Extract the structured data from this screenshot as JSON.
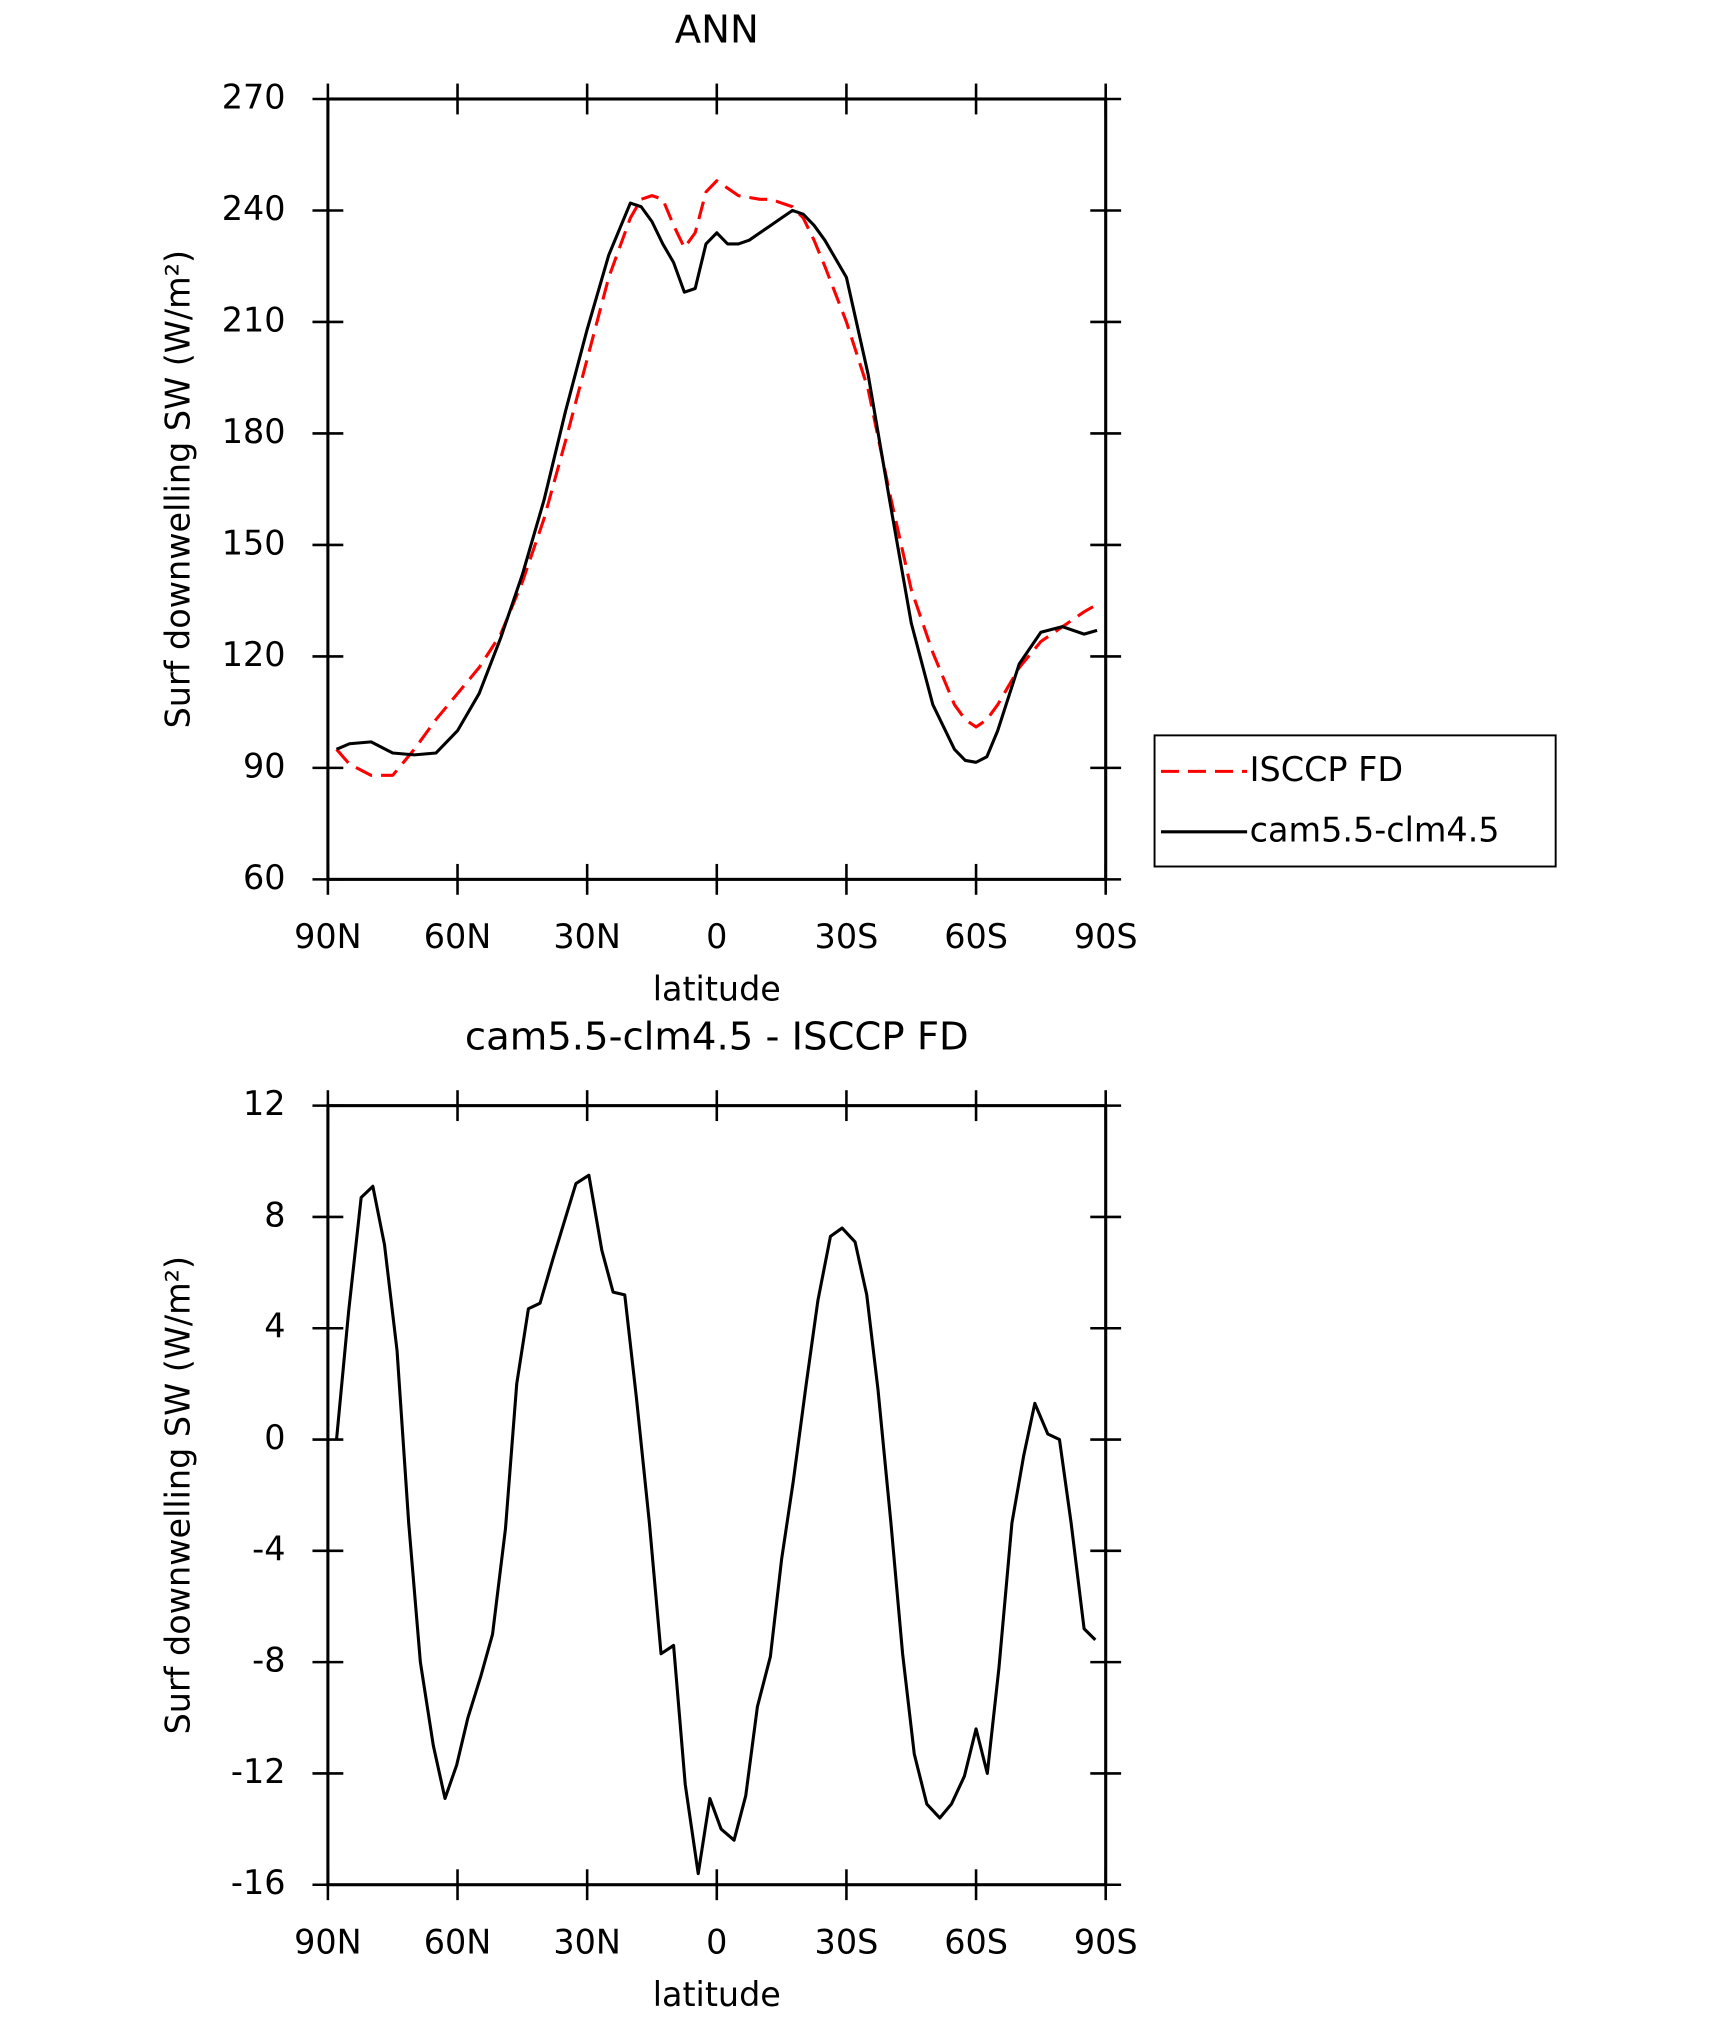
{
  "chart_data": [
    {
      "type": "line",
      "title": "ANN",
      "x_label": "latitude",
      "y_label": "Surf downwelling SW (W/m²)",
      "x": [
        88,
        85,
        80,
        75,
        70,
        65,
        60,
        55,
        50,
        45,
        40,
        35,
        30,
        25,
        20,
        17.5,
        15,
        12.5,
        10,
        7.5,
        5,
        2.5,
        0,
        -2.5,
        -5,
        -7.5,
        -10,
        -12.5,
        -15,
        -17.5,
        -20,
        -22.5,
        -25,
        -30,
        -35,
        -40,
        -45,
        -50,
        -55,
        -57.5,
        -60,
        -62.5,
        -65,
        -70,
        -75,
        -80,
        -85,
        -88
      ],
      "xlim": [
        90,
        -90
      ],
      "xticks": [
        {
          "value": 90,
          "label": "90N"
        },
        {
          "value": 60,
          "label": "60N"
        },
        {
          "value": 30,
          "label": "30N"
        },
        0,
        {
          "value": -30,
          "label": "30S"
        },
        {
          "value": -60,
          "label": "60S"
        },
        {
          "value": -90,
          "label": "90S"
        }
      ],
      "ylim": [
        60,
        270
      ],
      "yticks": [
        60,
        90,
        120,
        150,
        180,
        210,
        240,
        270
      ],
      "legend": "right",
      "series": [
        {
          "name": "ISCCP FD",
          "color": "#ff0000",
          "linestyle": "dashed",
          "values": [
            95,
            91,
            88,
            88,
            95,
            103,
            110,
            117,
            126,
            140,
            157,
            178,
            200,
            222,
            238,
            243,
            244,
            243,
            236,
            230,
            234,
            245,
            248,
            246,
            244,
            243.5,
            243,
            243,
            242,
            241,
            238,
            232,
            225,
            210,
            192,
            164,
            138,
            121,
            107,
            103,
            101,
            103,
            107,
            117,
            124,
            128,
            132,
            134
          ]
        },
        {
          "name": "cam5.5-clm4.5",
          "color": "#000000",
          "linestyle": "solid",
          "values": [
            95,
            96.5,
            97,
            94,
            93.5,
            94,
            100,
            110,
            125,
            142,
            162,
            186,
            208,
            228,
            242,
            241,
            237,
            231,
            226,
            218,
            219,
            231,
            234,
            231,
            231,
            232,
            234,
            236,
            238,
            240,
            239,
            236,
            232,
            222,
            196,
            162,
            129,
            107,
            95,
            92,
            91.5,
            93,
            100,
            118,
            126.5,
            128,
            126,
            127
          ]
        }
      ]
    },
    {
      "type": "line",
      "title": "cam5.5-clm4.5 - ISCCP FD",
      "x_label": "latitude",
      "y_label": "Surf downwelling SW (W/m²)",
      "x": [
        88,
        85.2,
        82.3,
        79.6,
        76.9,
        74,
        71.3,
        68.6,
        65.6,
        62.9,
        60.2,
        57.6,
        54.6,
        51.9,
        48.9,
        46.3,
        43.6,
        40.9,
        37.9,
        32.6,
        29.6,
        26.6,
        24,
        21.3,
        18.6,
        15.6,
        12.9,
        10,
        7.3,
        4.3,
        1.6,
        -1,
        -4,
        -6.7,
        -9.4,
        -12.4,
        -15,
        -17.7,
        -20.7,
        -23.4,
        -26.3,
        -29,
        -32,
        -34.7,
        -37.3,
        -40.3,
        -43,
        -45.7,
        -48.6,
        -51.6,
        -54.3,
        -57.3,
        -60,
        -62.6,
        -65.3,
        -68.3,
        -71,
        -73.6,
        -76.6,
        -79.3,
        -82,
        -85,
        -87.6
      ],
      "xlim": [
        90,
        -90
      ],
      "xticks": [
        {
          "value": 90,
          "label": "90N"
        },
        {
          "value": 60,
          "label": "60N"
        },
        {
          "value": 30,
          "label": "30N"
        },
        0,
        {
          "value": -30,
          "label": "30S"
        },
        {
          "value": -60,
          "label": "60S"
        },
        {
          "value": -90,
          "label": "90S"
        }
      ],
      "ylim": [
        -16,
        12
      ],
      "yticks": [
        -16,
        -12,
        -8,
        -4,
        0,
        4,
        8,
        12
      ],
      "color": "#000000",
      "values": [
        0,
        4.6,
        8.7,
        9.1,
        7,
        3.2,
        -3,
        -8,
        -11,
        -12.9,
        -11.7,
        -10,
        -8.5,
        -7,
        -3.2,
        2,
        4.7,
        4.9,
        6.5,
        9.2,
        9.5,
        6.8,
        5.3,
        5.2,
        1.5,
        -3,
        -7.7,
        -7.4,
        -12.4,
        -15.6,
        -12.9,
        -14,
        -14.4,
        -12.8,
        -9.6,
        -7.8,
        -4.3,
        -1.5,
        2,
        5,
        7.3,
        7.6,
        7.1,
        5.2,
        1.8,
        -3,
        -7.7,
        -11.3,
        -13.1,
        -13.6,
        -13.1,
        -12.1,
        -10.4,
        -12,
        -8.2,
        -3,
        -0.6,
        1.3,
        0.2,
        0,
        -3,
        -6.8,
        -7.2
      ]
    }
  ]
}
